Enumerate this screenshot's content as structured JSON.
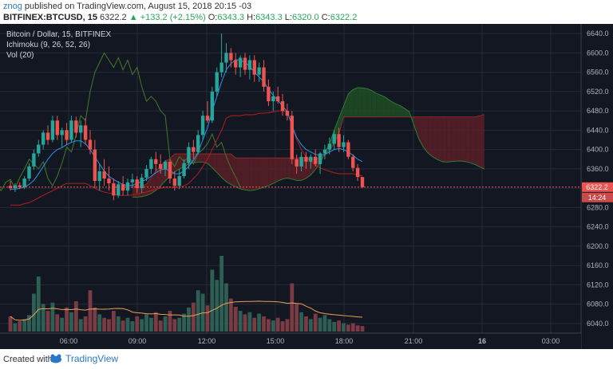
{
  "header": {
    "author": "znog",
    "published": "published on TradingView.com, August 15, 2018 20:15 -03",
    "symbol": "BITFINEX:BTCUSD, 15",
    "price": "6322.2",
    "change": "+133.2 (+2.15%)",
    "o_label": "O:",
    "o_value": "6343.3",
    "h_label": "H:",
    "h_value": "6343.3",
    "l_label": "L:",
    "l_value": "6320.0",
    "c_label": "C:",
    "c_value": "6322.2"
  },
  "legend": {
    "title": "Bitcoin / Dollar, 15, BITFINEX",
    "ichimoku": "Ichimoku (9, 26, 52, 26)",
    "vol": "Vol (20)"
  },
  "price_tag": "6322.2",
  "countdown": "14:24",
  "footer": {
    "created": "Created with",
    "brand": "TradingView"
  },
  "colors": {
    "background": "#131722",
    "grid": "#262b3a",
    "up": "#26a69a",
    "down": "#ef5350",
    "conversion": "#2196f3",
    "base": "#b71c1c",
    "lagging": "#3f7a2d",
    "cloud_up": "#1f4d25",
    "cloud_down": "#5a1f26",
    "vol_ma": "#f0a050"
  },
  "chart_data": {
    "type": "candlestick",
    "title": "Bitcoin / Dollar, 15, BITFINEX",
    "ylim": [
      6020,
      6660
    ],
    "y_ticks": [
      "6040.0",
      "6080.0",
      "6120.0",
      "6160.0",
      "6200.0",
      "6240.0",
      "6280.0",
      "6320.0",
      "6360.0",
      "6400.0",
      "6440.0",
      "6480.0",
      "6520.0",
      "6560.0",
      "6600.0",
      "6640.0"
    ],
    "x_ticks": [
      "06:00",
      "09:00",
      "12:00",
      "15:00",
      "18:00",
      "21:00",
      "16",
      "03:00"
    ],
    "last_price": 6322.2,
    "last_candle": {
      "open": 6343.3,
      "high": 6343.3,
      "low": 6320.0,
      "close": 6322.2
    },
    "candles": [
      [
        6325,
        6335,
        6315,
        6320
      ],
      [
        6320,
        6330,
        6312,
        6326
      ],
      [
        6326,
        6332,
        6318,
        6322
      ],
      [
        6322,
        6345,
        6318,
        6340
      ],
      [
        6340,
        6372,
        6335,
        6365
      ],
      [
        6365,
        6400,
        6358,
        6392
      ],
      [
        6392,
        6420,
        6385,
        6410
      ],
      [
        6410,
        6440,
        6400,
        6435
      ],
      [
        6435,
        6450,
        6410,
        6420
      ],
      [
        6420,
        6470,
        6415,
        6460
      ],
      [
        6460,
        6470,
        6420,
        6430
      ],
      [
        6430,
        6445,
        6405,
        6440
      ],
      [
        6440,
        6455,
        6410,
        6420
      ],
      [
        6420,
        6470,
        6415,
        6460
      ],
      [
        6460,
        6468,
        6425,
        6435
      ],
      [
        6435,
        6460,
        6405,
        6450
      ],
      [
        6450,
        6465,
        6410,
        6420
      ],
      [
        6420,
        6440,
        6390,
        6400
      ],
      [
        6400,
        6420,
        6320,
        6335
      ],
      [
        6335,
        6370,
        6315,
        6355
      ],
      [
        6355,
        6380,
        6325,
        6340
      ],
      [
        6340,
        6365,
        6315,
        6330
      ],
      [
        6330,
        6340,
        6295,
        6305
      ],
      [
        6305,
        6335,
        6300,
        6328
      ],
      [
        6328,
        6345,
        6305,
        6315
      ],
      [
        6315,
        6340,
        6305,
        6332
      ],
      [
        6332,
        6350,
        6320,
        6338
      ],
      [
        6338,
        6345,
        6310,
        6320
      ],
      [
        6320,
        6350,
        6310,
        6342
      ],
      [
        6342,
        6368,
        6335,
        6360
      ],
      [
        6360,
        6385,
        6350,
        6380
      ],
      [
        6380,
        6395,
        6355,
        6370
      ],
      [
        6370,
        6390,
        6350,
        6360
      ],
      [
        6360,
        6378,
        6345,
        6375
      ],
      [
        6375,
        6380,
        6330,
        6340
      ],
      [
        6340,
        6355,
        6315,
        6325
      ],
      [
        6325,
        6360,
        6318,
        6345
      ],
      [
        6345,
        6380,
        6340,
        6372
      ],
      [
        6372,
        6415,
        6360,
        6405
      ],
      [
        6405,
        6420,
        6380,
        6395
      ],
      [
        6395,
        6440,
        6390,
        6430
      ],
      [
        6430,
        6480,
        6420,
        6470
      ],
      [
        6470,
        6500,
        6455,
        6460
      ],
      [
        6460,
        6530,
        6455,
        6520
      ],
      [
        6520,
        6570,
        6510,
        6560
      ],
      [
        6560,
        6640,
        6550,
        6580
      ],
      [
        6580,
        6620,
        6560,
        6600
      ],
      [
        6600,
        6610,
        6570,
        6585
      ],
      [
        6585,
        6600,
        6555,
        6570
      ],
      [
        6570,
        6595,
        6550,
        6590
      ],
      [
        6590,
        6600,
        6555,
        6565
      ],
      [
        6565,
        6595,
        6545,
        6585
      ],
      [
        6585,
        6595,
        6540,
        6555
      ],
      [
        6555,
        6580,
        6540,
        6570
      ],
      [
        6570,
        6585,
        6520,
        6530
      ],
      [
        6530,
        6545,
        6490,
        6500
      ],
      [
        6500,
        6520,
        6480,
        6510
      ],
      [
        6510,
        6530,
        6495,
        6500
      ],
      [
        6500,
        6515,
        6470,
        6480
      ],
      [
        6480,
        6495,
        6460,
        6470
      ],
      [
        6470,
        6480,
        6370,
        6380
      ],
      [
        6380,
        6390,
        6350,
        6365
      ],
      [
        6365,
        6395,
        6355,
        6385
      ],
      [
        6385,
        6395,
        6360,
        6375
      ],
      [
        6375,
        6390,
        6360,
        6385
      ],
      [
        6385,
        6400,
        6365,
        6370
      ],
      [
        6370,
        6395,
        6350,
        6392
      ],
      [
        6392,
        6410,
        6380,
        6400
      ],
      [
        6400,
        6425,
        6390,
        6412
      ],
      [
        6412,
        6440,
        6400,
        6432
      ],
      [
        6432,
        6445,
        6395,
        6405
      ],
      [
        6405,
        6430,
        6395,
        6415
      ],
      [
        6415,
        6420,
        6380,
        6385
      ],
      [
        6385,
        6390,
        6355,
        6362
      ],
      [
        6362,
        6370,
        6335,
        6343
      ],
      [
        6343,
        6343.3,
        6320,
        6322.2
      ]
    ],
    "volume": [
      22,
      12,
      15,
      18,
      24,
      55,
      80,
      40,
      30,
      42,
      25,
      20,
      35,
      28,
      44,
      18,
      22,
      60,
      35,
      25,
      20,
      18,
      30,
      22,
      16,
      20,
      15,
      22,
      18,
      25,
      20,
      28,
      16,
      22,
      30,
      18,
      20,
      26,
      35,
      42,
      60,
      55,
      38,
      90,
      75,
      110,
      70,
      48,
      36,
      30,
      25,
      28,
      20,
      26,
      22,
      18,
      16,
      20,
      15,
      18,
      70,
      40,
      28,
      22,
      18,
      26,
      20,
      24,
      18,
      14,
      16,
      12,
      10,
      12,
      9,
      8
    ],
    "ichimoku": {
      "conversion": [
        6318,
        6318,
        6320,
        6322,
        6328,
        6336,
        6350,
        6365,
        6380,
        6392,
        6400,
        6404,
        6410,
        6415,
        6418,
        6418,
        6412,
        6400,
        6385,
        6370,
        6355,
        6345,
        6338,
        6332,
        6328,
        6325,
        6326,
        6330,
        6334,
        6338,
        6345,
        6352,
        6358,
        6360,
        6356,
        6350,
        6350,
        6356,
        6365,
        6378,
        6395,
        6420,
        6445,
        6480,
        6510,
        6540,
        6565,
        6578,
        6586,
        6585,
        6580,
        6572,
        6560,
        6550,
        6540,
        6525,
        6512,
        6502,
        6490,
        6478,
        6450,
        6425,
        6410,
        6400,
        6395,
        6390,
        6388,
        6390,
        6395,
        6400,
        6402,
        6400,
        6395,
        6388,
        6380,
        6375
      ],
      "base": [
        6285,
        6285,
        6285,
        6288,
        6290,
        6295,
        6300,
        6305,
        6310,
        6315,
        6320,
        6325,
        6330,
        6330,
        6330,
        6330,
        6330,
        6325,
        6320,
        6315,
        6312,
        6310,
        6308,
        6305,
        6305,
        6305,
        6306,
        6308,
        6310,
        6312,
        6315,
        6318,
        6320,
        6322,
        6322,
        6322,
        6322,
        6325,
        6330,
        6340,
        6350,
        6365,
        6380,
        6400,
        6420,
        6440,
        6465,
        6470,
        6470,
        6470,
        6472,
        6472,
        6472,
        6475,
        6475,
        6476,
        6478,
        6480,
        6480,
        6478,
        6450,
        6420,
        6400,
        6385,
        6375,
        6368,
        6362,
        6358,
        6355,
        6352,
        6350,
        6350,
        6350,
        6350,
        6348,
        6345
      ]
    }
  }
}
